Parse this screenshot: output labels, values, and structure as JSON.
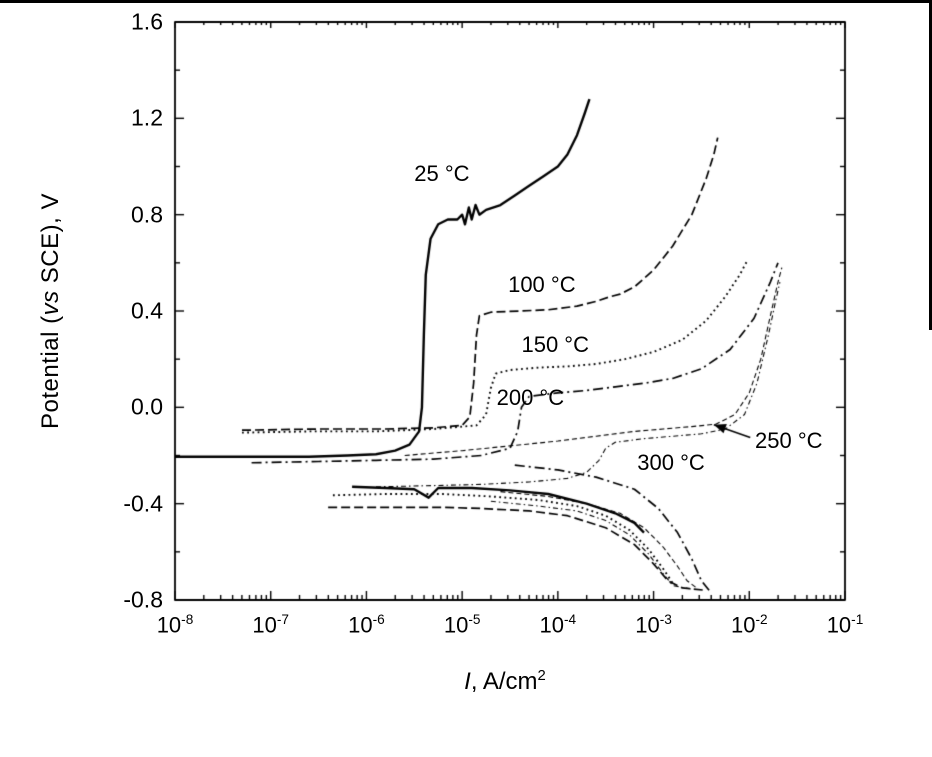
{
  "page": {
    "background": "#ffffff"
  },
  "chart_data": {
    "type": "line",
    "title": "",
    "xlabel_parts": [
      "I",
      ", A/cm",
      "2"
    ],
    "ylabel_parts": [
      "Potential (",
      "vs",
      " SCE), V"
    ],
    "x_scale": "log",
    "x_range_log10": [
      -8,
      -1
    ],
    "y_range": [
      -0.8,
      1.6
    ],
    "grid": false,
    "legend": "none",
    "colors": {
      "axis": "#000000",
      "curve": "#000000",
      "background": "#ffffff"
    },
    "y_ticks": [
      {
        "label": "1.6",
        "value": 1.6
      },
      {
        "label": "1.2",
        "value": 1.2
      },
      {
        "label": "0.8",
        "value": 0.8
      },
      {
        "label": "0.4",
        "value": 0.4
      },
      {
        "label": "0.0",
        "value": 0.0
      },
      {
        "label": "-0.4",
        "value": -0.4
      },
      {
        "label": "-0.8",
        "value": -0.8
      }
    ],
    "x_ticks": [
      {
        "base": "10",
        "exp": "-8",
        "value": -8
      },
      {
        "base": "10",
        "exp": "-7",
        "value": -7
      },
      {
        "base": "10",
        "exp": "-6",
        "value": -6
      },
      {
        "base": "10",
        "exp": "-5",
        "value": -5
      },
      {
        "base": "10",
        "exp": "-4",
        "value": -4
      },
      {
        "base": "10",
        "exp": "-3",
        "value": -3
      },
      {
        "base": "10",
        "exp": "-2",
        "value": -2
      },
      {
        "base": "10",
        "exp": "-1",
        "value": -1
      }
    ],
    "series": [
      {
        "name": "25 °C",
        "line_style": "solid",
        "line_width": 2.4,
        "segments": [
          [
            [
              -8.0,
              -0.205
            ],
            [
              -7.2,
              -0.205
            ],
            [
              -6.6,
              -0.205
            ],
            [
              -6.2,
              -0.2
            ],
            [
              -5.9,
              -0.195
            ],
            [
              -5.7,
              -0.18
            ],
            [
              -5.55,
              -0.155
            ],
            [
              -5.45,
              -0.1
            ],
            [
              -5.42,
              0.0
            ],
            [
              -5.4,
              0.3
            ],
            [
              -5.38,
              0.55
            ],
            [
              -5.33,
              0.7
            ],
            [
              -5.25,
              0.76
            ],
            [
              -5.15,
              0.78
            ],
            [
              -5.05,
              0.78
            ],
            [
              -5.0,
              0.8
            ],
            [
              -4.97,
              0.76
            ],
            [
              -4.93,
              0.83
            ],
            [
              -4.9,
              0.78
            ],
            [
              -4.86,
              0.84
            ],
            [
              -4.82,
              0.8
            ],
            [
              -4.75,
              0.82
            ],
            [
              -4.6,
              0.84
            ],
            [
              -4.45,
              0.88
            ],
            [
              -4.3,
              0.92
            ],
            [
              -4.15,
              0.96
            ],
            [
              -4.0,
              1.0
            ],
            [
              -3.9,
              1.05
            ],
            [
              -3.8,
              1.13
            ],
            [
              -3.72,
              1.22
            ],
            [
              -3.67,
              1.28
            ]
          ],
          [
            [
              -6.15,
              -0.33
            ],
            [
              -5.8,
              -0.335
            ],
            [
              -5.5,
              -0.34
            ],
            [
              -5.35,
              -0.375
            ],
            [
              -5.25,
              -0.335
            ],
            [
              -4.9,
              -0.335
            ],
            [
              -4.5,
              -0.345
            ],
            [
              -4.1,
              -0.36
            ],
            [
              -3.7,
              -0.4
            ],
            [
              -3.4,
              -0.44
            ],
            [
              -3.2,
              -0.48
            ],
            [
              -3.1,
              -0.52
            ]
          ]
        ]
      },
      {
        "name": "100 °C",
        "line_style": "dashed",
        "line_width": 1.7,
        "segments": [
          [
            [
              -7.3,
              -0.095
            ],
            [
              -6.5,
              -0.09
            ],
            [
              -5.8,
              -0.09
            ],
            [
              -5.3,
              -0.085
            ],
            [
              -5.0,
              -0.075
            ],
            [
              -4.92,
              -0.04
            ],
            [
              -4.88,
              0.1
            ],
            [
              -4.85,
              0.3
            ],
            [
              -4.82,
              0.38
            ],
            [
              -4.7,
              0.395
            ],
            [
              -4.4,
              0.4
            ],
            [
              -4.1,
              0.405
            ],
            [
              -3.8,
              0.42
            ],
            [
              -3.6,
              0.44
            ],
            [
              -3.45,
              0.46
            ],
            [
              -3.35,
              0.47
            ],
            [
              -3.2,
              0.5
            ],
            [
              -3.0,
              0.57
            ],
            [
              -2.8,
              0.67
            ],
            [
              -2.6,
              0.8
            ],
            [
              -2.45,
              0.95
            ],
            [
              -2.37,
              1.05
            ],
            [
              -2.33,
              1.12
            ]
          ],
          [
            [
              -6.4,
              -0.415
            ],
            [
              -5.8,
              -0.415
            ],
            [
              -5.2,
              -0.415
            ],
            [
              -4.8,
              -0.42
            ],
            [
              -4.3,
              -0.43
            ],
            [
              -3.9,
              -0.45
            ],
            [
              -3.5,
              -0.5
            ],
            [
              -3.2,
              -0.57
            ],
            [
              -3.0,
              -0.65
            ],
            [
              -2.85,
              -0.72
            ],
            [
              -2.7,
              -0.75
            ],
            [
              -2.45,
              -0.76
            ]
          ]
        ]
      },
      {
        "name": "150 °C",
        "line_style": "dotted",
        "line_width": 1.9,
        "segments": [
          [
            [
              -7.3,
              -0.105
            ],
            [
              -6.6,
              -0.1
            ],
            [
              -5.9,
              -0.1
            ],
            [
              -5.3,
              -0.09
            ],
            [
              -4.85,
              -0.075
            ],
            [
              -4.75,
              -0.03
            ],
            [
              -4.7,
              0.08
            ],
            [
              -4.65,
              0.14
            ],
            [
              -4.5,
              0.155
            ],
            [
              -4.2,
              0.165
            ],
            [
              -3.9,
              0.17
            ],
            [
              -3.6,
              0.18
            ],
            [
              -3.3,
              0.2
            ],
            [
              -3.0,
              0.23
            ],
            [
              -2.7,
              0.28
            ],
            [
              -2.45,
              0.36
            ],
            [
              -2.25,
              0.46
            ],
            [
              -2.1,
              0.55
            ],
            [
              -2.02,
              0.61
            ]
          ],
          [
            [
              -6.35,
              -0.365
            ],
            [
              -5.8,
              -0.36
            ],
            [
              -5.2,
              -0.36
            ],
            [
              -4.7,
              -0.37
            ],
            [
              -4.2,
              -0.385
            ],
            [
              -3.8,
              -0.41
            ],
            [
              -3.5,
              -0.45
            ],
            [
              -3.25,
              -0.51
            ],
            [
              -3.05,
              -0.59
            ],
            [
              -2.9,
              -0.67
            ],
            [
              -2.8,
              -0.73
            ]
          ]
        ]
      },
      {
        "name": "200 °C",
        "line_style": "dashdot",
        "line_width": 1.7,
        "segments": [
          [
            [
              -7.2,
              -0.23
            ],
            [
              -6.5,
              -0.225
            ],
            [
              -5.9,
              -0.22
            ],
            [
              -5.3,
              -0.215
            ],
            [
              -4.8,
              -0.2
            ],
            [
              -4.5,
              -0.17
            ],
            [
              -4.42,
              -0.1
            ],
            [
              -4.38,
              0.0
            ],
            [
              -4.3,
              0.045
            ],
            [
              -4.0,
              0.06
            ],
            [
              -3.7,
              0.07
            ],
            [
              -3.4,
              0.085
            ],
            [
              -3.1,
              0.1
            ],
            [
              -2.8,
              0.12
            ],
            [
              -2.5,
              0.16
            ],
            [
              -2.2,
              0.24
            ],
            [
              -1.95,
              0.37
            ],
            [
              -1.78,
              0.52
            ],
            [
              -1.7,
              0.6
            ]
          ],
          [
            [
              -4.45,
              -0.24
            ],
            [
              -4.0,
              -0.26
            ],
            [
              -3.6,
              -0.29
            ],
            [
              -3.2,
              -0.34
            ],
            [
              -2.95,
              -0.42
            ],
            [
              -2.75,
              -0.52
            ],
            [
              -2.6,
              -0.63
            ],
            [
              -2.5,
              -0.72
            ],
            [
              -2.42,
              -0.76
            ]
          ]
        ]
      },
      {
        "name": "250 °C",
        "line_style": "fine-dash",
        "line_width": 1.1,
        "segments": [
          [
            [
              -5.6,
              -0.2
            ],
            [
              -5.0,
              -0.18
            ],
            [
              -4.5,
              -0.16
            ],
            [
              -4.0,
              -0.14
            ],
            [
              -3.6,
              -0.12
            ],
            [
              -3.2,
              -0.1
            ],
            [
              -2.9,
              -0.09
            ],
            [
              -2.6,
              -0.08
            ],
            [
              -2.35,
              -0.07
            ],
            [
              -2.15,
              -0.03
            ],
            [
              -2.0,
              0.06
            ],
            [
              -1.88,
              0.2
            ],
            [
              -1.78,
              0.38
            ],
            [
              -1.7,
              0.52
            ],
            [
              -1.66,
              0.58
            ]
          ],
          [
            [
              -4.6,
              -0.35
            ],
            [
              -4.1,
              -0.37
            ],
            [
              -3.7,
              -0.4
            ],
            [
              -3.35,
              -0.44
            ],
            [
              -3.1,
              -0.5
            ],
            [
              -2.9,
              -0.58
            ],
            [
              -2.75,
              -0.66
            ],
            [
              -2.65,
              -0.72
            ],
            [
              -2.55,
              -0.75
            ]
          ]
        ]
      },
      {
        "name": "300 °C",
        "line_style": "fine-dashdot",
        "line_width": 1.1,
        "segments": [
          [
            [
              -5.9,
              -0.33
            ],
            [
              -5.3,
              -0.325
            ],
            [
              -4.8,
              -0.32
            ],
            [
              -4.3,
              -0.31
            ],
            [
              -3.9,
              -0.295
            ],
            [
              -3.7,
              -0.27
            ],
            [
              -3.57,
              -0.22
            ],
            [
              -3.5,
              -0.17
            ],
            [
              -3.4,
              -0.145
            ],
            [
              -3.1,
              -0.13
            ],
            [
              -2.8,
              -0.12
            ],
            [
              -2.5,
              -0.11
            ],
            [
              -2.25,
              -0.09
            ],
            [
              -2.05,
              -0.03
            ],
            [
              -1.92,
              0.1
            ],
            [
              -1.8,
              0.3
            ],
            [
              -1.72,
              0.45
            ],
            [
              -1.68,
              0.52
            ]
          ],
          [
            [
              -4.7,
              -0.39
            ],
            [
              -4.2,
              -0.41
            ],
            [
              -3.8,
              -0.43
            ],
            [
              -3.5,
              -0.47
            ],
            [
              -3.25,
              -0.53
            ],
            [
              -3.05,
              -0.61
            ],
            [
              -2.9,
              -0.69
            ],
            [
              -2.8,
              -0.74
            ],
            [
              -2.6,
              -0.755
            ]
          ]
        ]
      }
    ],
    "annotations": [
      {
        "id": "25c",
        "text": "25 °C",
        "x": -5.5,
        "y": 0.97
      },
      {
        "id": "100c",
        "text": "100 °C",
        "x": -4.52,
        "y": 0.51
      },
      {
        "id": "150c",
        "text": "150 °C",
        "x": -4.38,
        "y": 0.26
      },
      {
        "id": "200c",
        "text": "200 °C",
        "x": -4.64,
        "y": 0.04
      },
      {
        "id": "250c",
        "text": "250 °C",
        "x": -1.94,
        "y": -0.14,
        "arrow": {
          "from": [
            -1.99,
            -0.125
          ],
          "to": [
            -2.37,
            -0.072
          ]
        }
      },
      {
        "id": "300c",
        "text": "300 °C",
        "x": -3.17,
        "y": -0.23
      }
    ]
  }
}
